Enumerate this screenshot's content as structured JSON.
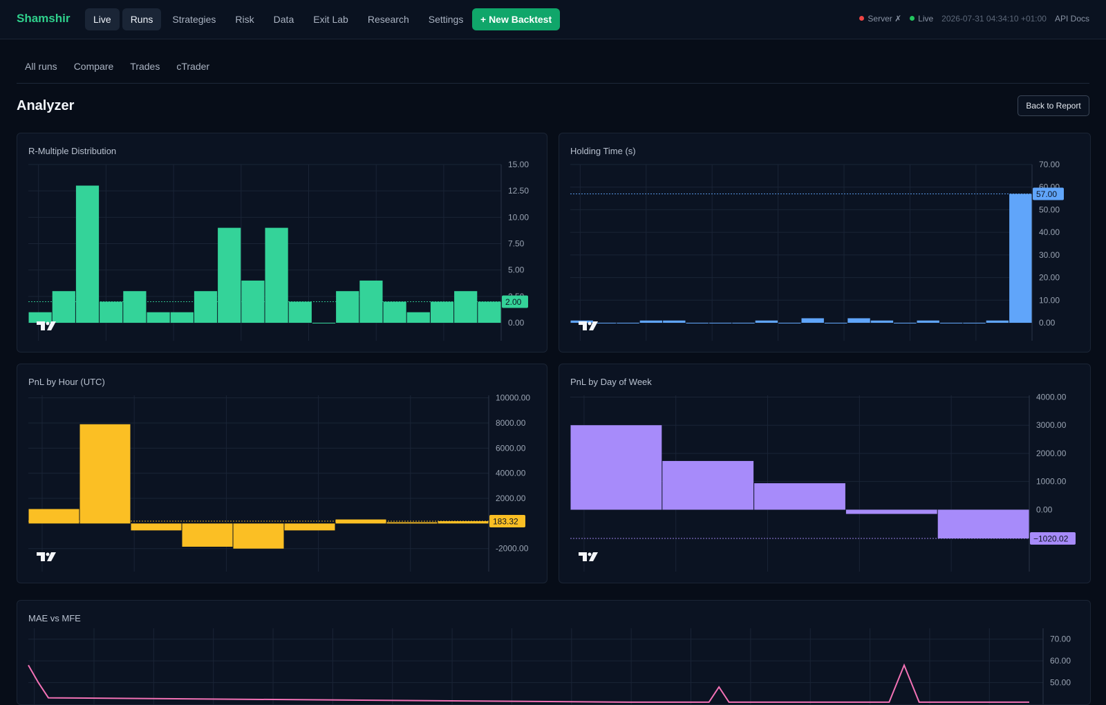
{
  "brand": "Shamshir",
  "nav": [
    "Live",
    "Runs",
    "Strategies",
    "Risk",
    "Data",
    "Exit Lab",
    "Research",
    "Settings"
  ],
  "nav_active": [
    "Live",
    "Runs"
  ],
  "new_backtest_label": "+ New Backtest",
  "status": {
    "server_label": "Server ✗",
    "live_label": "Live",
    "timestamp": "2026-07-31 04:34:10 +01:00",
    "api_docs": "API Docs",
    "colors": {
      "server": "#ef4444",
      "live": "#22c55e"
    }
  },
  "subtabs": [
    "All runs",
    "Compare",
    "Trades",
    "cTrader"
  ],
  "page_title": "Analyzer",
  "back_button": "Back to Report",
  "chart_data": [
    {
      "type": "bar",
      "title": "R-Multiple Distribution",
      "color": "#34d399",
      "values": [
        1,
        3,
        13,
        2,
        3,
        1,
        1,
        3,
        9,
        4,
        9,
        2,
        0,
        3,
        4,
        2,
        1,
        2,
        3,
        2
      ],
      "y_ticks": [
        "0.00",
        "2.50",
        "5.00",
        "7.50",
        "10.00",
        "12.50",
        "15.00"
      ],
      "ylim": [
        0,
        15
      ],
      "last_value_label": "2.00",
      "last_value": 2
    },
    {
      "type": "bar",
      "title": "Holding Time (s)",
      "color": "#60a5fa",
      "values": [
        1,
        0,
        0,
        1,
        1,
        0,
        0,
        0,
        1,
        0,
        2,
        0,
        2,
        1,
        0,
        1,
        0,
        0,
        1,
        57
      ],
      "y_ticks": [
        "0.00",
        "10.00",
        "20.00",
        "30.00",
        "40.00",
        "50.00",
        "60.00",
        "70.00"
      ],
      "ylim": [
        0,
        70
      ],
      "last_value_label": "57.00",
      "last_value": 57
    },
    {
      "type": "bar",
      "title": "PnL by Hour (UTC)",
      "color": "#fbbf24",
      "values": [
        1150,
        7900,
        -550,
        -1850,
        -2000,
        -550,
        320,
        100,
        183.32
      ],
      "y_ticks": [
        "-2000.00",
        "2000.00",
        "4000.00",
        "6000.00",
        "8000.00",
        "10000.00"
      ],
      "ylim": [
        -2400,
        10200
      ],
      "last_value_label": "183.32",
      "last_value": 183.32
    },
    {
      "type": "bar",
      "title": "PnL by Day of Week",
      "color": "#a78bfa",
      "values": [
        3000,
        1730,
        940,
        -150,
        -1020.02
      ],
      "y_ticks": [
        "0.00",
        "1000.00",
        "2000.00",
        "3000.00",
        "4000.00"
      ],
      "ylim": [
        -1560,
        4060
      ],
      "last_value_label": "−1020.02",
      "last_value": -1020.02
    },
    {
      "type": "line",
      "title": "MAE vs MFE",
      "color": "#f472b6",
      "y_ticks": [
        "50.00",
        "60.00",
        "70.00"
      ],
      "ylim": [
        40,
        75
      ],
      "points": [
        [
          0,
          58
        ],
        [
          0.01,
          50
        ],
        [
          0.02,
          43
        ],
        [
          0.6,
          41
        ],
        [
          0.68,
          41
        ],
        [
          0.69,
          48
        ],
        [
          0.7,
          41
        ],
        [
          0.86,
          41
        ],
        [
          0.875,
          58
        ],
        [
          0.89,
          41
        ],
        [
          1,
          41
        ]
      ]
    }
  ]
}
